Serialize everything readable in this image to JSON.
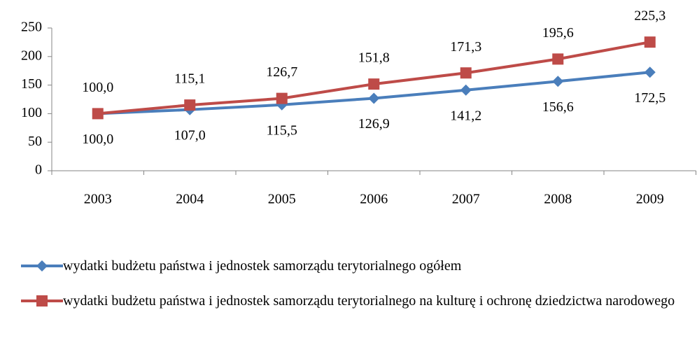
{
  "chart_data": {
    "type": "line",
    "categories": [
      "2003",
      "2004",
      "2005",
      "2006",
      "2007",
      "2008",
      "2009"
    ],
    "series": [
      {
        "name": "wydatki budżetu państwa i jednostek samorządu terytorialnego ogółem",
        "color": "#4a7ebb",
        "marker": "diamond",
        "values": [
          100,
          107,
          115.5,
          126.9,
          141.2,
          156.6,
          172.5
        ],
        "value_labels": [
          "100,0",
          "107,0",
          "115,5",
          "126,9",
          "141,2",
          "156,6",
          "172,5"
        ]
      },
      {
        "name": "wydatki budżetu państwa i jednostek samorządu terytorialnego na kulturę i ochronę dziedzictwa narodowego",
        "color": "#be4b48",
        "marker": "square",
        "values": [
          100,
          115.1,
          126.7,
          151.8,
          171.3,
          195.6,
          225.3
        ],
        "value_labels": [
          "100,0",
          "115,1",
          "126,7",
          "151,8",
          "171,3",
          "195,6",
          "225,3"
        ]
      }
    ],
    "ylim": [
      0,
      250
    ],
    "yticks": [
      0,
      50,
      100,
      150,
      200,
      250
    ],
    "grid": false,
    "legend": "bottom"
  }
}
